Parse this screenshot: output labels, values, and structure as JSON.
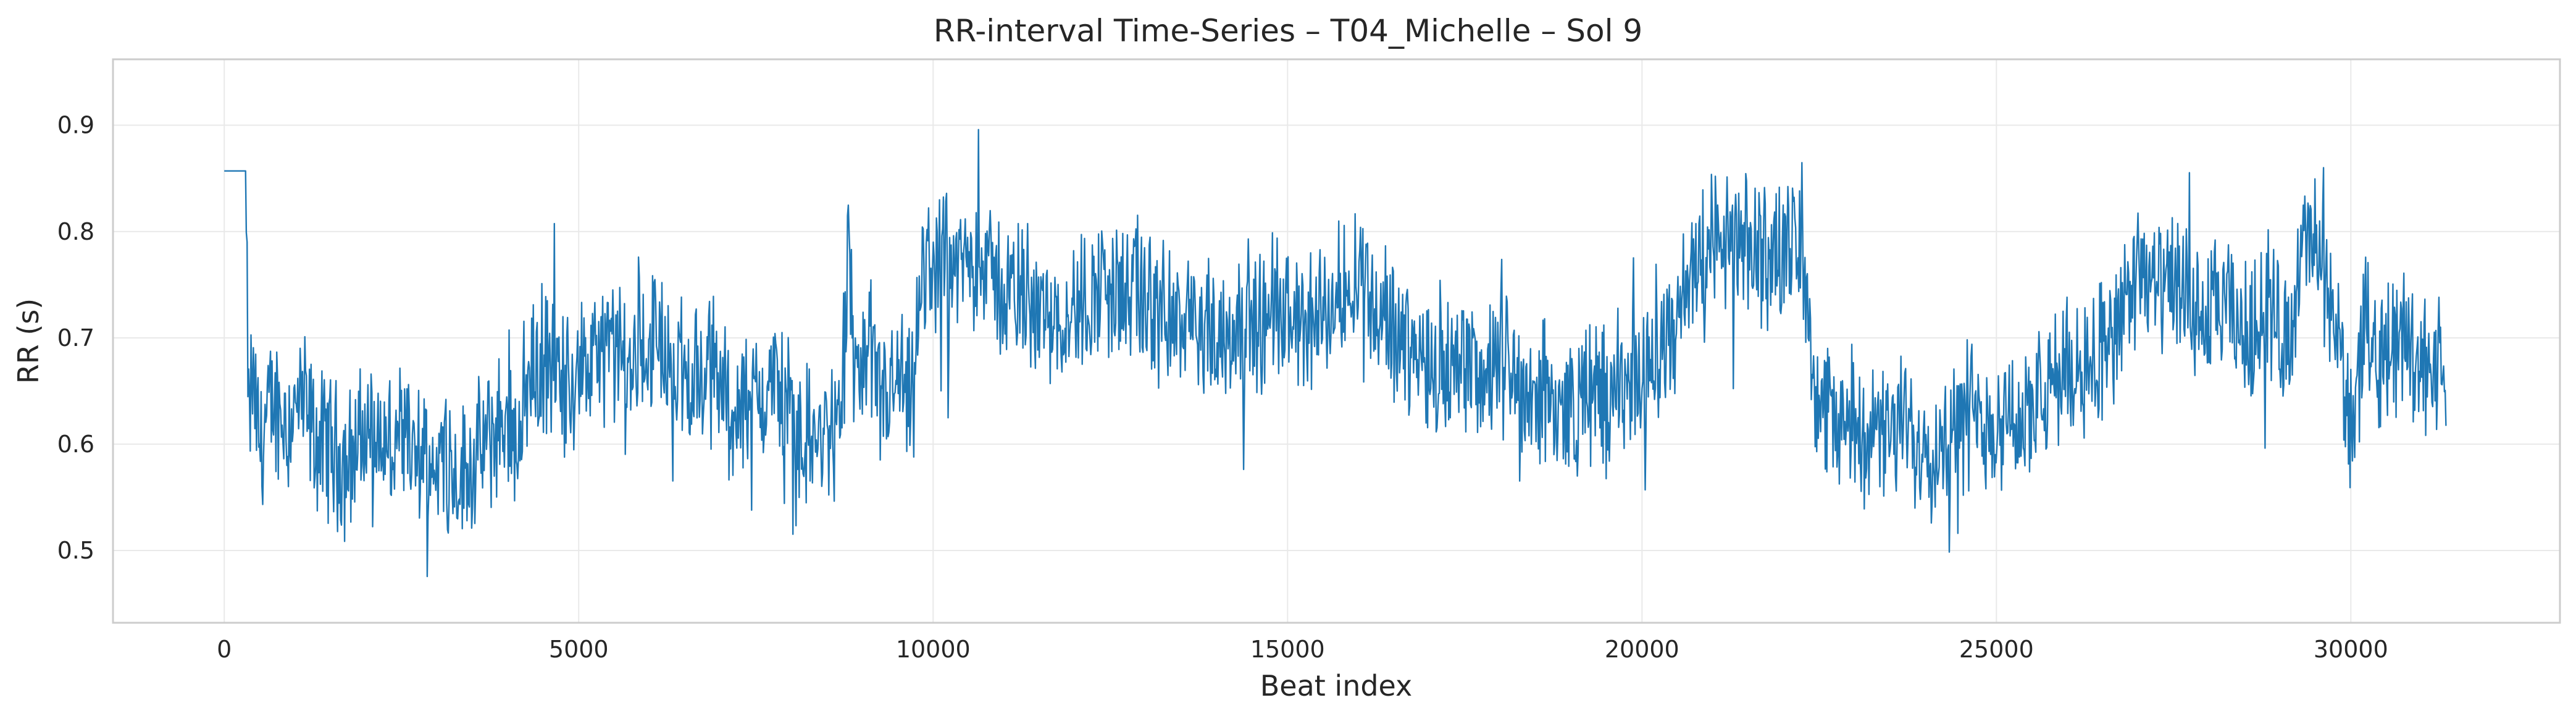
{
  "chart_data": {
    "type": "line",
    "title": "RR-interval Time-Series – T04_Michelle – Sol 9",
    "xlabel": "Beat index",
    "ylabel": "RR (s)",
    "xlim": [
      -1570,
      32950
    ],
    "ylim": [
      0.432,
      0.962
    ],
    "x_ticks": [
      0,
      5000,
      10000,
      15000,
      20000,
      25000,
      30000
    ],
    "x_tick_labels": [
      "0",
      "5000",
      "10000",
      "15000",
      "20000",
      "25000",
      "30000"
    ],
    "y_ticks": [
      0.5,
      0.6,
      0.7,
      0.8,
      0.9
    ],
    "y_tick_labels": [
      "0.5",
      "0.6",
      "0.7",
      "0.8",
      "0.9"
    ],
    "grid": true,
    "line_color": "#1f77b4",
    "series": [
      {
        "x": [
          0,
          280,
          300,
          340,
          400,
          500,
          700,
          900,
          1100,
          1300,
          1500,
          1700,
          1900,
          2100,
          2300,
          2500,
          2700,
          2900,
          3100,
          3300,
          3500,
          3700,
          3900,
          4100,
          4300,
          4500,
          4800,
          5100,
          5400,
          5700,
          6000,
          6300,
          6600,
          6900,
          7200,
          7500,
          7800,
          8100,
          8400,
          8700,
          8800,
          8900,
          9100,
          9300,
          9500,
          9700,
          9850,
          10000,
          10300,
          10600,
          10900,
          11200,
          11500,
          11800,
          12100,
          12400,
          12700,
          13000,
          13300,
          13600,
          13900,
          14200,
          14500,
          14800,
          15100,
          15400,
          15700,
          16000,
          16300,
          16600,
          16900,
          17200,
          17500,
          17800,
          18100,
          18400,
          18700,
          19000,
          19300,
          19600,
          19900,
          20200,
          20500,
          20800,
          21100,
          21400,
          21700,
          22000,
          22300,
          22500,
          22800,
          23100,
          23400,
          23700,
          24000,
          24300,
          24600,
          24900,
          25200,
          25500,
          25800,
          26100,
          26400,
          26700,
          27000,
          27300,
          27600,
          27900,
          28200,
          28500,
          28800,
          29100,
          29400,
          29700,
          30000,
          30200,
          30500,
          30800,
          31000,
          31200,
          31350
        ],
        "y": [
          0.857,
          0.857,
          0.857,
          0.62,
          0.66,
          0.6,
          0.64,
          0.62,
          0.64,
          0.6,
          0.6,
          0.58,
          0.6,
          0.62,
          0.59,
          0.6,
          0.58,
          0.58,
          0.6,
          0.57,
          0.58,
          0.6,
          0.62,
          0.61,
          0.66,
          0.68,
          0.66,
          0.67,
          0.69,
          0.67,
          0.7,
          0.68,
          0.66,
          0.67,
          0.63,
          0.64,
          0.66,
          0.61,
          0.6,
          0.62,
          0.8,
          0.66,
          0.67,
          0.64,
          0.66,
          0.63,
          0.76,
          0.77,
          0.76,
          0.78,
          0.75,
          0.74,
          0.73,
          0.72,
          0.73,
          0.75,
          0.74,
          0.73,
          0.72,
          0.71,
          0.7,
          0.71,
          0.72,
          0.71,
          0.72,
          0.71,
          0.74,
          0.77,
          0.72,
          0.7,
          0.68,
          0.67,
          0.69,
          0.66,
          0.68,
          0.65,
          0.64,
          0.63,
          0.65,
          0.64,
          0.66,
          0.68,
          0.71,
          0.79,
          0.79,
          0.78,
          0.78,
          0.79,
          0.77,
          0.63,
          0.62,
          0.62,
          0.6,
          0.62,
          0.6,
          0.6,
          0.63,
          0.62,
          0.63,
          0.62,
          0.66,
          0.67,
          0.69,
          0.7,
          0.76,
          0.74,
          0.75,
          0.71,
          0.73,
          0.7,
          0.72,
          0.7,
          0.8,
          0.74,
          0.62,
          0.7,
          0.69,
          0.7,
          0.68,
          0.67,
          0.68
        ],
        "min_y": 0.455,
        "max_y": 0.938
      }
    ]
  }
}
